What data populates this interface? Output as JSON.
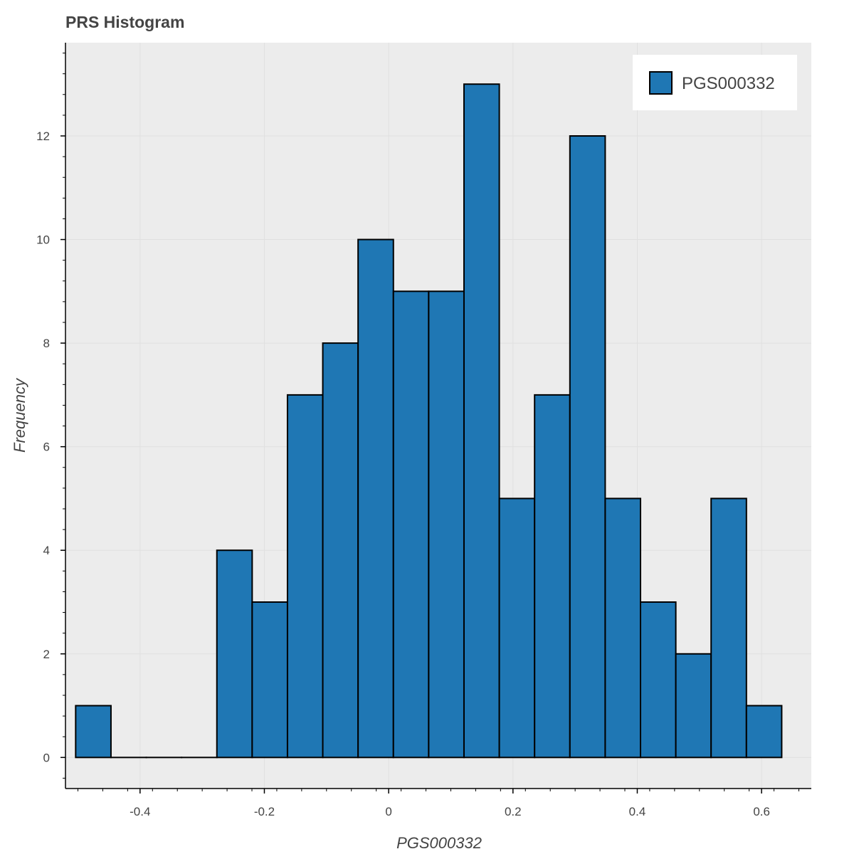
{
  "chart_data": {
    "type": "bar",
    "title": "PRS Histogram",
    "xlabel": "PGS000332",
    "ylabel": "Frequency",
    "xlim": [
      -0.52,
      0.68
    ],
    "ylim": [
      -0.6,
      13.8
    ],
    "x_ticks": [
      "-0.4",
      "-0.2",
      "0",
      "0.2",
      "0.4",
      "0.6"
    ],
    "x_tick_values": [
      -0.4,
      -0.2,
      0,
      0.2,
      0.4,
      0.6
    ],
    "y_ticks": [
      "0",
      "2",
      "4",
      "6",
      "8",
      "10",
      "12"
    ],
    "y_tick_values": [
      0,
      2,
      4,
      6,
      8,
      10,
      12
    ],
    "grid": true,
    "legend": {
      "position": "top-right",
      "entries": [
        "PGS000332"
      ]
    },
    "bin_edges": [
      -0.5036,
      -0.4468,
      -0.39,
      -0.3332,
      -0.2764,
      -0.2196,
      -0.1628,
      -0.106,
      -0.0492,
      0.0076,
      0.0644,
      0.1212,
      0.178,
      0.2348,
      0.2916,
      0.3484,
      0.4052,
      0.462,
      0.5188,
      0.5756,
      0.6324
    ],
    "series": [
      {
        "name": "PGS000332",
        "values": [
          1,
          0,
          0,
          0,
          4,
          3,
          7,
          8,
          10,
          9,
          9,
          13,
          5,
          7,
          12,
          5,
          3,
          2,
          5,
          1
        ]
      }
    ],
    "colors": {
      "bar_fill": "#1f77b4",
      "bar_stroke": "#000000",
      "plot_background": "#ececec",
      "grid": "#e0e0e0",
      "text": "#444444"
    }
  }
}
